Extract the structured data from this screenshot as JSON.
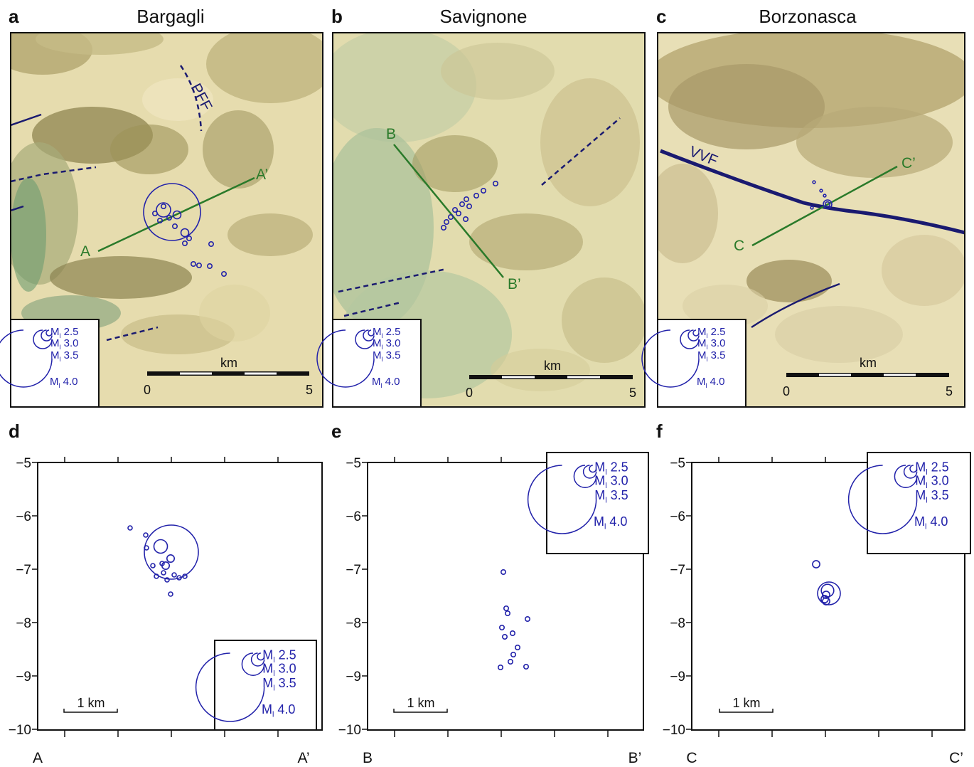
{
  "panels_top": [
    {
      "letter": "a",
      "title": "Bargagli",
      "section_start": "A",
      "section_end": "A’",
      "fault_label": "PFF",
      "scale_unit": "km",
      "scale_min": "0",
      "scale_max": "5"
    },
    {
      "letter": "b",
      "title": "Savignone",
      "section_start": "B",
      "section_end": "B’",
      "fault_label": "",
      "scale_unit": "km",
      "scale_min": "0",
      "scale_max": "5"
    },
    {
      "letter": "c",
      "title": "Borzonasca",
      "section_start": "C",
      "section_end": "C’",
      "fault_label": "VVF",
      "scale_unit": "km",
      "scale_min": "0",
      "scale_max": "5"
    }
  ],
  "panels_bottom": [
    {
      "letter": "d",
      "start_label": "A",
      "end_label": "A’",
      "scale_label": "1 km"
    },
    {
      "letter": "e",
      "start_label": "B",
      "end_label": "B’",
      "scale_label": "1 km"
    },
    {
      "letter": "f",
      "start_label": "C",
      "end_label": "C’",
      "scale_label": "1 km"
    }
  ],
  "y_ticks": [
    "−5",
    "−6",
    "−7",
    "−8",
    "−9",
    "−10"
  ],
  "magnitude_legend": {
    "prefix": "M",
    "subscript": "l",
    "values": [
      "2.5",
      "3.0",
      "3.5",
      "4.0"
    ]
  },
  "colors": {
    "event": "#2222aa",
    "section": "#2a7a2a",
    "fault": "#1a1a70",
    "frame": "#111111"
  },
  "events": {
    "a": [
      {
        "mag": 4.0
      },
      {
        "mag": 3.5
      },
      {
        "mag": 3.0
      },
      {
        "mag": 3.0
      },
      {
        "mag": 2.5
      },
      {
        "mag": 2.5
      },
      {
        "mag": 2.5
      },
      {
        "mag": 2.5
      },
      {
        "mag": 2.5
      },
      {
        "mag": 2.5
      },
      {
        "mag": 2.5
      },
      {
        "mag": 2.5
      },
      {
        "mag": 2.5
      },
      {
        "mag": 2.5
      },
      {
        "mag": 2.5
      },
      {
        "mag": 2.5
      }
    ],
    "b": [
      {
        "mag": 2.5
      },
      {
        "mag": 2.5
      },
      {
        "mag": 2.5
      },
      {
        "mag": 2.5
      },
      {
        "mag": 2.5
      },
      {
        "mag": 2.5
      },
      {
        "mag": 2.5
      },
      {
        "mag": 2.5
      },
      {
        "mag": 2.5
      },
      {
        "mag": 2.5
      },
      {
        "mag": 2.5
      },
      {
        "mag": 2.5
      }
    ],
    "c": [
      {
        "mag": 3.5
      },
      {
        "mag": 3.0
      },
      {
        "mag": 2.5
      },
      {
        "mag": 2.5
      },
      {
        "mag": 2.5
      },
      {
        "mag": 2.5
      }
    ]
  }
}
